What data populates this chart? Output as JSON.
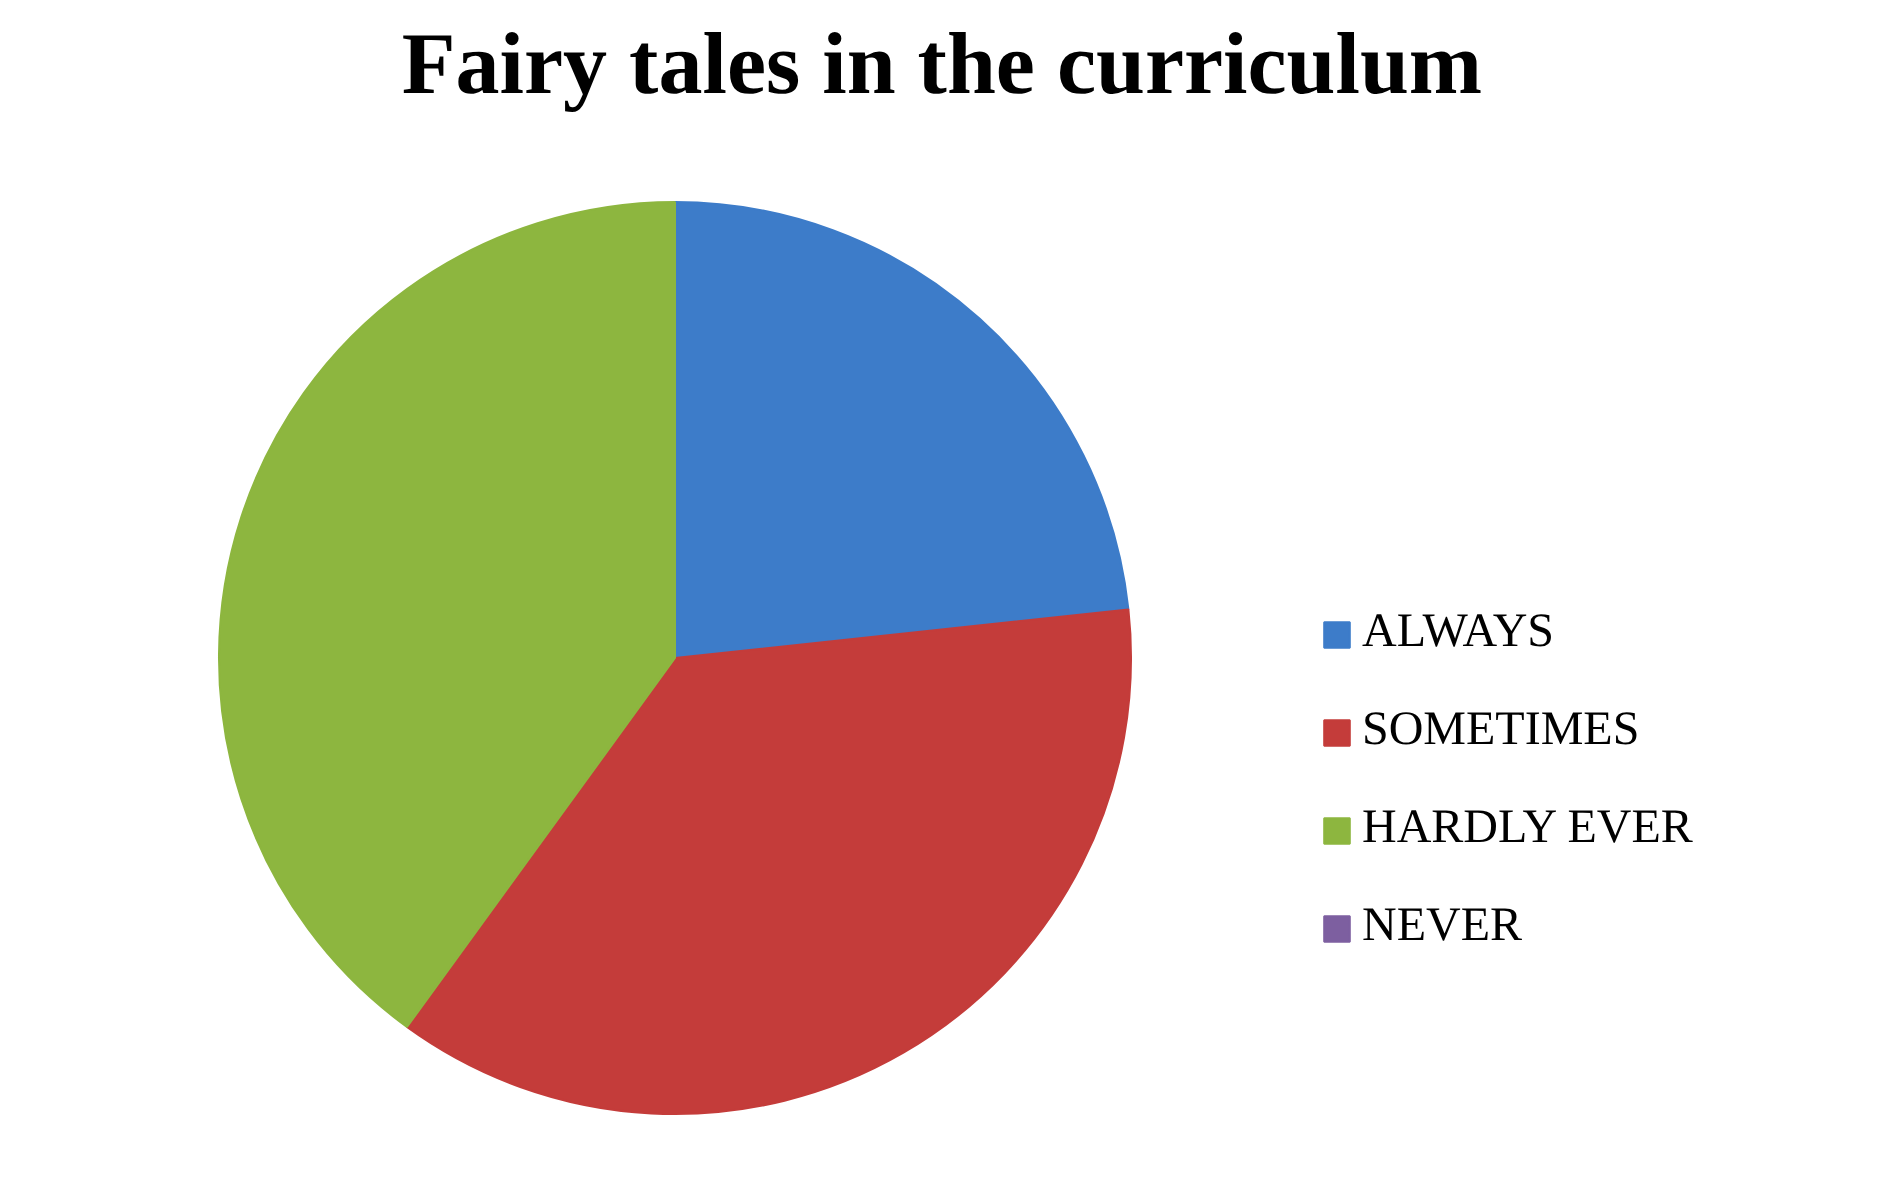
{
  "chart_data": {
    "type": "pie",
    "title": "Fairy tales in the curriculum",
    "categories": [
      "ALWAYS",
      "SOMETIMES",
      "HARDLY EVER",
      "NEVER"
    ],
    "values": [
      23.3,
      36.7,
      40,
      0
    ],
    "colors": [
      "#3d7cc9",
      "#c43c3a",
      "#8db63f",
      "#7d5fa0"
    ],
    "legend": "right"
  }
}
